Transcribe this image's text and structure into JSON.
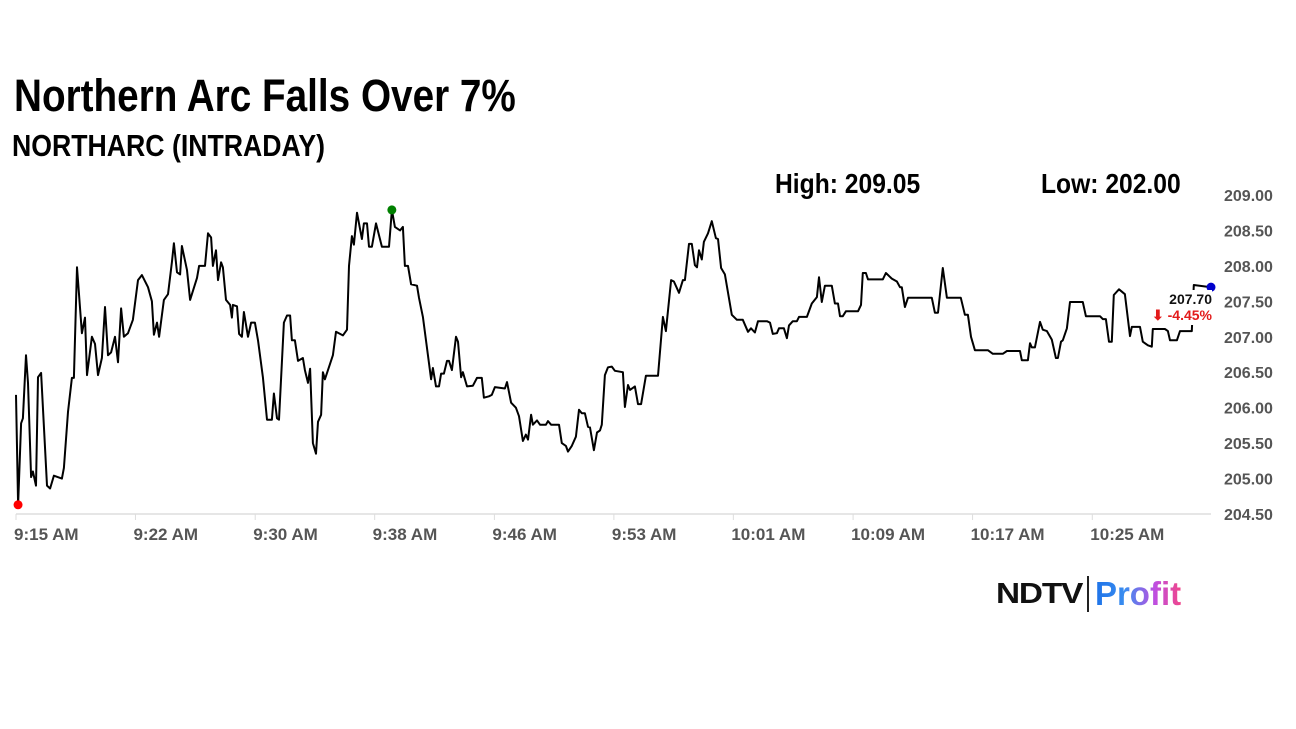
{
  "header": {
    "title": "Northern Arc Falls Over 7%",
    "subtitle": "NORTHARC (INTRADAY)",
    "high_label": "High: 209.05",
    "low_label": "Low: 202.00"
  },
  "last": {
    "price": "207.70",
    "change": "⬇ -4.45%",
    "change_color": "#e31b1b"
  },
  "logo": {
    "brand": "NDTV",
    "product": "Profit"
  },
  "chart_data": {
    "type": "line",
    "title": "",
    "xlabel": "",
    "ylabel": "",
    "ylim": [
      204.5,
      209.0
    ],
    "xlim": [
      "9:15:00",
      "10:32:41"
    ],
    "grid": false,
    "line_color": "#000000",
    "y_ticks": [
      "204.50",
      "205.00",
      "205.50",
      "206.00",
      "206.50",
      "207.00",
      "207.50",
      "208.00",
      "208.50",
      "209.00"
    ],
    "x_ticks": [
      {
        "t": "9:15:00",
        "label": "9:15 AM"
      },
      {
        "t": "9:22:46",
        "label": "9:22 AM"
      },
      {
        "t": "9:30:33",
        "label": "9:30 AM"
      },
      {
        "t": "9:38:19",
        "label": "9:38 AM"
      },
      {
        "t": "9:46:06",
        "label": "9:46 AM"
      },
      {
        "t": "9:53:52",
        "label": "9:53 AM"
      },
      {
        "t": "10:01:38",
        "label": "10:01 AM"
      },
      {
        "t": "10:09:25",
        "label": "10:09 AM"
      },
      {
        "t": "10:17:11",
        "label": "10:17 AM"
      },
      {
        "t": "10:24:58",
        "label": "10:25 AM"
      }
    ],
    "markers": [
      {
        "name": "low-marker",
        "t": "9:15:08",
        "value": 204.63,
        "color": "#ff0000"
      },
      {
        "name": "high-marker",
        "t": "9:39:26",
        "value": 208.79,
        "color": "#008000"
      },
      {
        "name": "last-marker",
        "t": "10:32:41",
        "value": 207.7,
        "color": "#0000cc"
      }
    ],
    "points": [
      [
        "9:15:00",
        206.18
      ],
      [
        "9:15:08",
        204.63
      ],
      [
        "9:15:20",
        205.78
      ],
      [
        "9:15:27",
        205.85
      ],
      [
        "9:15:39",
        206.74
      ],
      [
        "9:15:47",
        206.35
      ],
      [
        "9:15:59",
        205.02
      ],
      [
        "9:16:06",
        205.1
      ],
      [
        "9:16:18",
        204.9
      ],
      [
        "9:16:26",
        206.43
      ],
      [
        "9:16:38",
        206.49
      ],
      [
        "9:17:01",
        204.9
      ],
      [
        "9:17:13",
        204.86
      ],
      [
        "9:17:28",
        205.04
      ],
      [
        "9:17:59",
        205.0
      ],
      [
        "9:18:07",
        205.15
      ],
      [
        "9:18:23",
        205.94
      ],
      [
        "9:18:38",
        206.42
      ],
      [
        "9:18:46",
        206.42
      ],
      [
        "9:18:58",
        207.98
      ],
      [
        "9:19:17",
        207.05
      ],
      [
        "9:19:29",
        207.27
      ],
      [
        "9:19:37",
        206.46
      ],
      [
        "9:19:56",
        207.0
      ],
      [
        "9:20:08",
        206.9
      ],
      [
        "9:20:20",
        206.46
      ],
      [
        "9:20:35",
        206.7
      ],
      [
        "9:20:47",
        207.42
      ],
      [
        "9:20:59",
        206.74
      ],
      [
        "9:21:11",
        206.78
      ],
      [
        "9:21:26",
        207.0
      ],
      [
        "9:21:38",
        206.64
      ],
      [
        "9:21:50",
        207.4
      ],
      [
        "9:22:01",
        207.0
      ],
      [
        "9:22:17",
        207.05
      ],
      [
        "9:22:36",
        207.24
      ],
      [
        "9:22:56",
        207.8
      ],
      [
        "9:23:11",
        207.87
      ],
      [
        "9:23:35",
        207.7
      ],
      [
        "9:23:50",
        207.5
      ],
      [
        "9:23:58",
        207.03
      ],
      [
        "9:24:10",
        207.2
      ],
      [
        "9:24:18",
        207.0
      ],
      [
        "9:24:37",
        207.52
      ],
      [
        "9:24:53",
        207.6
      ],
      [
        "9:25:08",
        208.05
      ],
      [
        "9:25:16",
        208.32
      ],
      [
        "9:25:28",
        207.91
      ],
      [
        "9:25:40",
        207.88
      ],
      [
        "9:25:47",
        208.28
      ],
      [
        "9:26:07",
        207.94
      ],
      [
        "9:26:19",
        207.52
      ],
      [
        "9:26:46",
        207.83
      ],
      [
        "9:26:54",
        208.0
      ],
      [
        "9:27:17",
        208.0
      ],
      [
        "9:27:29",
        208.46
      ],
      [
        "9:27:41",
        208.4
      ],
      [
        "9:27:48",
        208.0
      ],
      [
        "9:28:00",
        208.22
      ],
      [
        "9:28:08",
        207.8
      ],
      [
        "9:28:20",
        208.05
      ],
      [
        "9:28:27",
        207.98
      ],
      [
        "9:28:39",
        207.52
      ],
      [
        "9:28:55",
        207.45
      ],
      [
        "9:29:02",
        207.27
      ],
      [
        "9:29:06",
        207.45
      ],
      [
        "9:29:22",
        207.43
      ],
      [
        "9:29:30",
        207.04
      ],
      [
        "9:29:41",
        207.0
      ],
      [
        "9:29:49",
        207.35
      ],
      [
        "9:30:05",
        207.0
      ],
      [
        "9:30:17",
        207.2
      ],
      [
        "9:30:32",
        207.2
      ],
      [
        "9:30:44",
        206.95
      ],
      [
        "9:31:03",
        206.43
      ],
      [
        "9:31:19",
        205.83
      ],
      [
        "9:31:38",
        205.83
      ],
      [
        "9:31:46",
        206.2
      ],
      [
        "9:31:58",
        205.85
      ],
      [
        "9:32:06",
        205.83
      ],
      [
        "9:32:25",
        207.2
      ],
      [
        "9:32:37",
        207.3
      ],
      [
        "9:32:49",
        207.3
      ],
      [
        "9:32:56",
        206.95
      ],
      [
        "9:33:08",
        206.95
      ],
      [
        "9:33:20",
        206.66
      ],
      [
        "9:33:39",
        206.7
      ],
      [
        "9:33:47",
        206.53
      ],
      [
        "9:33:59",
        206.35
      ],
      [
        "9:34:07",
        206.55
      ],
      [
        "9:34:18",
        205.5
      ],
      [
        "9:34:30",
        205.35
      ],
      [
        "9:34:38",
        205.8
      ],
      [
        "9:34:50",
        205.9
      ],
      [
        "9:34:57",
        206.5
      ],
      [
        "9:35:05",
        206.4
      ],
      [
        "9:35:25",
        206.62
      ],
      [
        "9:35:36",
        206.74
      ],
      [
        "9:35:48",
        207.07
      ],
      [
        "9:36:15",
        207.02
      ],
      [
        "9:36:31",
        207.1
      ],
      [
        "9:36:39",
        208.0
      ],
      [
        "9:36:50",
        208.42
      ],
      [
        "9:36:58",
        208.3
      ],
      [
        "9:37:10",
        208.75
      ],
      [
        "9:37:29",
        208.38
      ],
      [
        "9:37:37",
        208.6
      ],
      [
        "9:37:49",
        208.6
      ],
      [
        "9:37:57",
        208.27
      ],
      [
        "9:38:08",
        208.27
      ],
      [
        "9:38:24",
        208.6
      ],
      [
        "9:38:47",
        208.27
      ],
      [
        "9:39:15",
        208.27
      ],
      [
        "9:39:26",
        208.79
      ],
      [
        "9:39:38",
        208.55
      ],
      [
        "9:39:58",
        208.5
      ],
      [
        "9:40:09",
        208.55
      ],
      [
        "9:40:17",
        208.0
      ],
      [
        "9:40:29",
        208.0
      ],
      [
        "9:40:41",
        207.74
      ],
      [
        "9:41:04",
        207.72
      ],
      [
        "9:41:12",
        207.55
      ],
      [
        "9:41:27",
        207.28
      ],
      [
        "9:41:59",
        206.4
      ],
      [
        "9:42:06",
        206.56
      ],
      [
        "9:42:18",
        206.3
      ],
      [
        "9:42:30",
        206.3
      ],
      [
        "9:42:38",
        206.48
      ],
      [
        "9:42:49",
        206.48
      ],
      [
        "9:43:01",
        206.66
      ],
      [
        "9:43:09",
        206.66
      ],
      [
        "9:43:20",
        206.53
      ],
      [
        "9:43:36",
        207.0
      ],
      [
        "9:43:44",
        206.93
      ],
      [
        "9:43:56",
        206.43
      ],
      [
        "9:44:03",
        206.5
      ],
      [
        "9:44:19",
        206.3
      ],
      [
        "9:44:42",
        206.31
      ],
      [
        "9:44:58",
        206.42
      ],
      [
        "9:45:17",
        206.42
      ],
      [
        "9:45:25",
        206.14
      ],
      [
        "9:45:45",
        206.16
      ],
      [
        "9:45:56",
        206.18
      ],
      [
        "9:46:08",
        206.29
      ],
      [
        "9:46:47",
        206.27
      ],
      [
        "9:46:55",
        206.36
      ],
      [
        "9:47:11",
        206.07
      ],
      [
        "9:47:30",
        206.0
      ],
      [
        "9:47:42",
        205.88
      ],
      [
        "9:47:57",
        205.53
      ],
      [
        "9:48:09",
        205.62
      ],
      [
        "9:48:17",
        205.55
      ],
      [
        "9:48:29",
        205.9
      ],
      [
        "9:48:36",
        205.76
      ],
      [
        "9:48:52",
        205.82
      ],
      [
        "9:49:04",
        205.76
      ],
      [
        "9:49:27",
        205.76
      ],
      [
        "9:49:35",
        205.81
      ],
      [
        "9:49:47",
        205.76
      ],
      [
        "9:50:18",
        205.76
      ],
      [
        "9:50:29",
        205.5
      ],
      [
        "9:50:45",
        205.46
      ],
      [
        "9:50:53",
        205.38
      ],
      [
        "9:51:08",
        205.46
      ],
      [
        "9:51:24",
        205.59
      ],
      [
        "9:51:36",
        205.97
      ],
      [
        "9:51:47",
        205.92
      ],
      [
        "9:51:59",
        205.92
      ],
      [
        "9:52:11",
        205.73
      ],
      [
        "9:52:19",
        205.72
      ],
      [
        "9:52:34",
        205.4
      ],
      [
        "9:52:46",
        205.65
      ],
      [
        "9:52:58",
        205.68
      ],
      [
        "9:53:05",
        205.76
      ],
      [
        "9:53:17",
        206.46
      ],
      [
        "9:53:29",
        206.57
      ],
      [
        "9:53:44",
        206.58
      ],
      [
        "9:53:56",
        206.52
      ],
      [
        "9:54:27",
        206.5
      ],
      [
        "9:54:35",
        206.01
      ],
      [
        "9:54:47",
        206.32
      ],
      [
        "9:54:55",
        206.25
      ],
      [
        "9:55:14",
        206.3
      ],
      [
        "9:55:26",
        206.05
      ],
      [
        "9:55:38",
        206.05
      ],
      [
        "9:55:57",
        206.45
      ],
      [
        "9:56:44",
        206.45
      ],
      [
        "9:57:03",
        207.28
      ],
      [
        "9:57:15",
        207.08
      ],
      [
        "9:57:35",
        207.8
      ],
      [
        "9:57:46",
        207.78
      ],
      [
        "9:58:06",
        207.62
      ],
      [
        "9:58:21",
        207.8
      ],
      [
        "9:58:29",
        207.8
      ],
      [
        "9:58:45",
        208.31
      ],
      [
        "9:58:56",
        208.31
      ],
      [
        "9:59:08",
        208.01
      ],
      [
        "9:59:16",
        207.98
      ],
      [
        "9:59:24",
        208.22
      ],
      [
        "9:59:35",
        208.09
      ],
      [
        "9:59:43",
        208.34
      ],
      [
        "9:59:59",
        208.46
      ],
      [
        "10:00:14",
        208.63
      ],
      [
        "10:00:30",
        208.39
      ],
      [
        "10:00:38",
        208.38
      ],
      [
        "10:00:50",
        207.97
      ],
      [
        "10:01:05",
        207.88
      ],
      [
        "10:01:32",
        207.31
      ],
      [
        "10:01:52",
        207.24
      ],
      [
        "10:02:15",
        207.24
      ],
      [
        "10:02:35",
        207.07
      ],
      [
        "10:02:47",
        207.12
      ],
      [
        "10:03:02",
        207.06
      ],
      [
        "10:03:14",
        207.22
      ],
      [
        "10:03:49",
        207.22
      ],
      [
        "10:04:01",
        207.2
      ],
      [
        "10:04:12",
        207.04
      ],
      [
        "10:04:28",
        207.05
      ],
      [
        "10:04:36",
        207.12
      ],
      [
        "10:04:55",
        207.12
      ],
      [
        "10:05:07",
        206.98
      ],
      [
        "10:05:15",
        207.16
      ],
      [
        "10:05:30",
        207.22
      ],
      [
        "10:05:46",
        207.22
      ],
      [
        "10:05:54",
        207.28
      ],
      [
        "10:06:25",
        207.28
      ],
      [
        "10:06:44",
        207.47
      ],
      [
        "10:07:04",
        207.56
      ],
      [
        "10:07:12",
        207.84
      ],
      [
        "10:07:23",
        207.49
      ],
      [
        "10:07:35",
        207.72
      ],
      [
        "10:08:02",
        207.72
      ],
      [
        "10:08:14",
        207.47
      ],
      [
        "10:08:26",
        207.47
      ],
      [
        "10:08:34",
        207.29
      ],
      [
        "10:08:45",
        207.29
      ],
      [
        "10:08:57",
        207.36
      ],
      [
        "10:09:44",
        207.36
      ],
      [
        "10:09:56",
        207.45
      ],
      [
        "10:10:03",
        207.9
      ],
      [
        "10:10:15",
        207.9
      ],
      [
        "10:10:23",
        207.81
      ],
      [
        "10:11:21",
        207.81
      ],
      [
        "10:11:33",
        207.9
      ],
      [
        "10:11:56",
        207.82
      ],
      [
        "10:12:16",
        207.78
      ],
      [
        "10:12:28",
        207.7
      ],
      [
        "10:12:35",
        207.7
      ],
      [
        "10:12:47",
        207.42
      ],
      [
        "10:12:59",
        207.55
      ],
      [
        "10:14:32",
        207.55
      ],
      [
        "10:14:44",
        207.34
      ],
      [
        "10:14:56",
        207.34
      ],
      [
        "10:15:15",
        207.97
      ],
      [
        "10:15:31",
        207.55
      ],
      [
        "10:16:25",
        207.55
      ],
      [
        "10:16:41",
        207.31
      ],
      [
        "10:16:53",
        207.31
      ],
      [
        "10:17:05",
        207.0
      ],
      [
        "10:17:20",
        206.81
      ],
      [
        "10:18:11",
        206.81
      ],
      [
        "10:18:30",
        206.76
      ],
      [
        "10:19:09",
        206.76
      ],
      [
        "10:19:25",
        206.8
      ],
      [
        "10:20:16",
        206.8
      ],
      [
        "10:20:23",
        206.67
      ],
      [
        "10:20:47",
        206.67
      ],
      [
        "10:20:55",
        206.91
      ],
      [
        "10:21:02",
        206.85
      ],
      [
        "10:21:14",
        206.85
      ],
      [
        "10:21:34",
        207.21
      ],
      [
        "10:21:45",
        207.1
      ],
      [
        "10:22:01",
        207.08
      ],
      [
        "10:22:20",
        206.96
      ],
      [
        "10:22:36",
        206.7
      ],
      [
        "10:22:44",
        206.7
      ],
      [
        "10:22:56",
        206.93
      ],
      [
        "10:23:03",
        206.95
      ],
      [
        "10:23:19",
        207.12
      ],
      [
        "10:23:31",
        207.49
      ],
      [
        "10:24:21",
        207.49
      ],
      [
        "10:24:33",
        207.29
      ],
      [
        "10:25:28",
        207.29
      ],
      [
        "10:25:39",
        207.25
      ],
      [
        "10:25:51",
        207.25
      ],
      [
        "10:26:03",
        206.93
      ],
      [
        "10:26:14",
        206.93
      ],
      [
        "10:26:22",
        207.59
      ],
      [
        "10:26:42",
        207.67
      ],
      [
        "10:27:05",
        207.6
      ],
      [
        "10:27:25",
        207.01
      ],
      [
        "10:27:32",
        207.14
      ],
      [
        "10:28:04",
        207.14
      ],
      [
        "10:28:15",
        206.93
      ],
      [
        "10:28:35",
        206.88
      ],
      [
        "10:28:50",
        206.86
      ],
      [
        "10:28:54",
        207.11
      ],
      [
        "10:29:41",
        207.11
      ],
      [
        "10:29:53",
        207.08
      ],
      [
        "10:30:01",
        206.95
      ],
      [
        "10:30:28",
        206.95
      ],
      [
        "10:30:40",
        207.08
      ],
      [
        "10:31:26",
        207.08
      ],
      [
        "10:31:34",
        207.73
      ],
      [
        "10:32:41",
        207.7
      ]
    ]
  }
}
